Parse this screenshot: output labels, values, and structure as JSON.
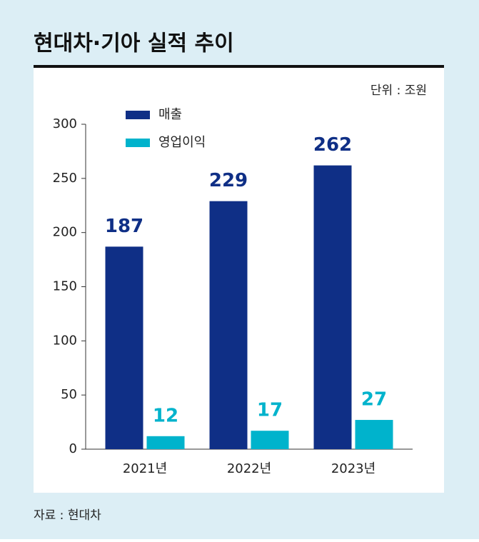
{
  "chart_data": {
    "type": "bar",
    "title": "현대차·기아 실적 추이",
    "unit": "단위 : 조원",
    "source": "자료 : 현대차",
    "categories": [
      "2021년",
      "2022년",
      "2023년"
    ],
    "series": [
      {
        "name": "매출",
        "color": "#0f2f86",
        "values": [
          187,
          229,
          262
        ]
      },
      {
        "name": "영업이익",
        "color": "#00b3cc",
        "values": [
          12,
          17,
          27
        ]
      }
    ],
    "ylim": [
      0,
      300
    ],
    "yticks": [
      0,
      50,
      100,
      150,
      200,
      250,
      300
    ]
  }
}
